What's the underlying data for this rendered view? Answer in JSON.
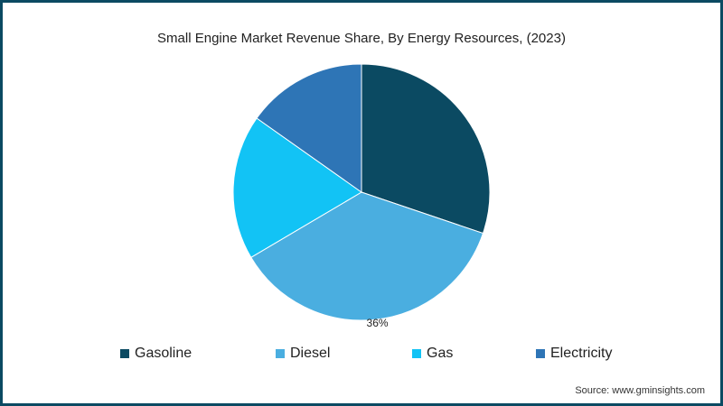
{
  "chart_data": {
    "type": "pie",
    "title": "Small Engine Market Revenue Share, By Energy Resources, (2023)",
    "categories": [
      "Gasoline",
      "Diesel",
      "Gas",
      "Electricity"
    ],
    "values": [
      30.2,
      36.3,
      18.3,
      15.2
    ],
    "colors": [
      "#0b4a62",
      "#4aaee0",
      "#12c3f5",
      "#2e75b6"
    ],
    "data_labels": {
      "Diesel": "36%"
    },
    "legend_position": "bottom"
  },
  "source": "Source: www.gminsights.com"
}
